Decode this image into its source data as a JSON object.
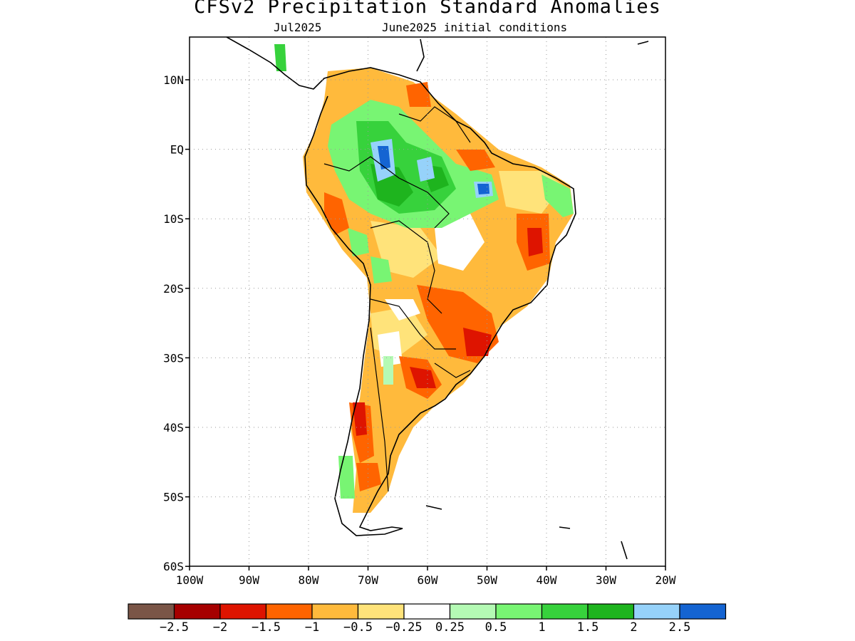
{
  "map": {
    "title": "CFSv2 Precipitation Standard Anomalies",
    "subtitle_left": "Jul2025",
    "subtitle_right": "June2025 initial conditions",
    "lat_labels": [
      "10N",
      "EQ",
      "10S",
      "20S",
      "30S",
      "40S",
      "50S",
      "60S"
    ],
    "lon_labels": [
      "100W",
      "90W",
      "80W",
      "70W",
      "60W",
      "50W",
      "40W",
      "30W",
      "20W"
    ],
    "colorbar": {
      "colors": [
        "#7a5547",
        "#a60000",
        "#de1400",
        "#ff6400",
        "#ffba3c",
        "#ffe37a",
        "#ffffff",
        "#b4fab4",
        "#78f573",
        "#37d23c",
        "#1eb41e",
        "#96d2fa",
        "#1464d2"
      ],
      "labels": [
        "-2.5",
        "-2",
        "-1.5",
        "-1",
        "-0.5",
        "-0.25",
        "0.25",
        "0.5",
        "1",
        "1.5",
        "2",
        "2.5"
      ]
    },
    "colors": {
      "coast": "#000000",
      "grid": "#9a9a9a"
    }
  }
}
